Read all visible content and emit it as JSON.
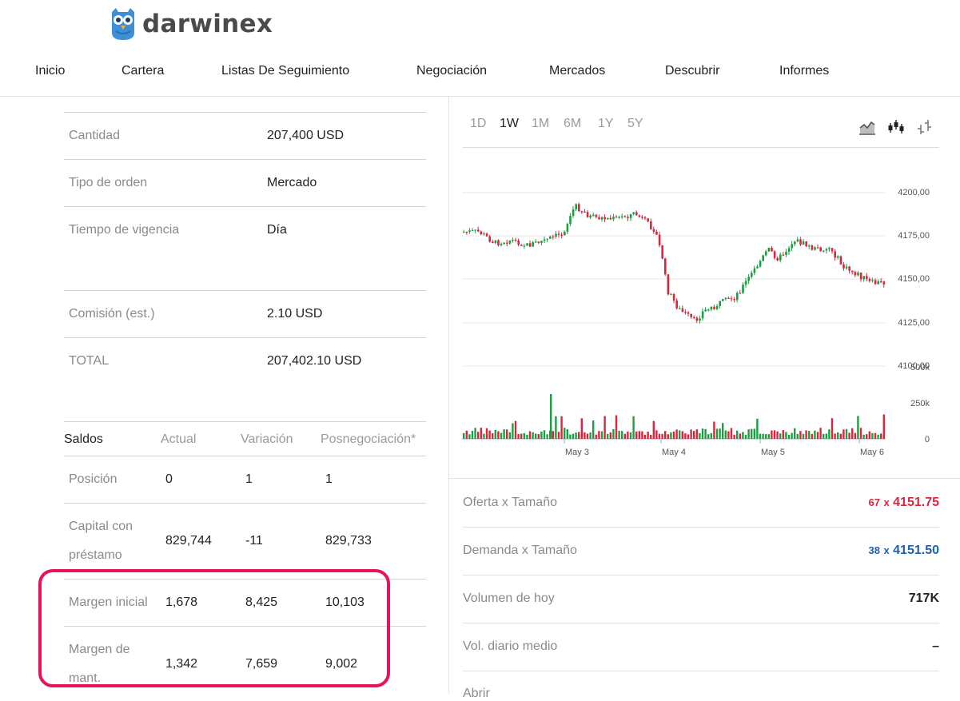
{
  "brand": {
    "name": "darwinex"
  },
  "nav": {
    "items": [
      "Inicio",
      "Cartera",
      "Listas De Seguimiento",
      "Negociación",
      "Mercados",
      "Descubrir",
      "Informes"
    ]
  },
  "order": {
    "rows": [
      {
        "label": "Cantidad",
        "value": "207,400 USD"
      },
      {
        "label": "Tipo de orden",
        "value": "Mercado"
      },
      {
        "label": "Tiempo de vigencia",
        "value": "Día"
      },
      {
        "label": "Comisión (est.)",
        "value": "2.10 USD"
      },
      {
        "label": "TOTAL",
        "value": "207,402.10 USD"
      }
    ]
  },
  "balances": {
    "headers": [
      "Saldos",
      "Actual",
      "Variación",
      "Posnegociación*"
    ],
    "rows": [
      {
        "label": "Posición",
        "actual": "0",
        "variacion": "1",
        "posneg": "1"
      },
      {
        "label": "Capital con préstamo",
        "actual": "829,744",
        "variacion": "-11",
        "posneg": "829,733"
      },
      {
        "label": "Margen inicial",
        "actual": "1,678",
        "variacion": "8,425",
        "posneg": "10,103"
      },
      {
        "label": "Margen de mant.",
        "actual": "1,342",
        "variacion": "7,659",
        "posneg": "9,002"
      }
    ]
  },
  "chart": {
    "ranges": [
      "1D",
      "1W",
      "1M",
      "6M",
      "1Y",
      "5Y"
    ],
    "active_range": "1W",
    "type_icons": [
      "area-chart-icon",
      "candlestick-icon",
      "ohlc-bars-icon"
    ],
    "price_ticks": [
      "4200,00",
      "4175,00",
      "4150,00",
      "4125,00",
      "4100,00"
    ],
    "volume_ticks": [
      "500k",
      "250k",
      "0"
    ],
    "date_labels": [
      "May 3",
      "May 4",
      "May 5",
      "May 6"
    ],
    "colors": {
      "up": "#1c9e45",
      "down": "#d9263d",
      "grid": "#e8e8e8",
      "axis_text": "#555555"
    }
  },
  "quotes": {
    "rows": [
      {
        "label": "Oferta x Tamaño",
        "size": "67",
        "x": "x",
        "price": "4151.75",
        "color": "#d9263d"
      },
      {
        "label": "Demanda x Tamaño",
        "size": "38",
        "x": "x",
        "price": "4151.50",
        "color": "#1f5fb0"
      },
      {
        "label": "Volumen de hoy",
        "value": "717K"
      },
      {
        "label": "Vol. diario medio",
        "value": "–"
      },
      {
        "label": "Abrir",
        "value": ""
      }
    ]
  }
}
